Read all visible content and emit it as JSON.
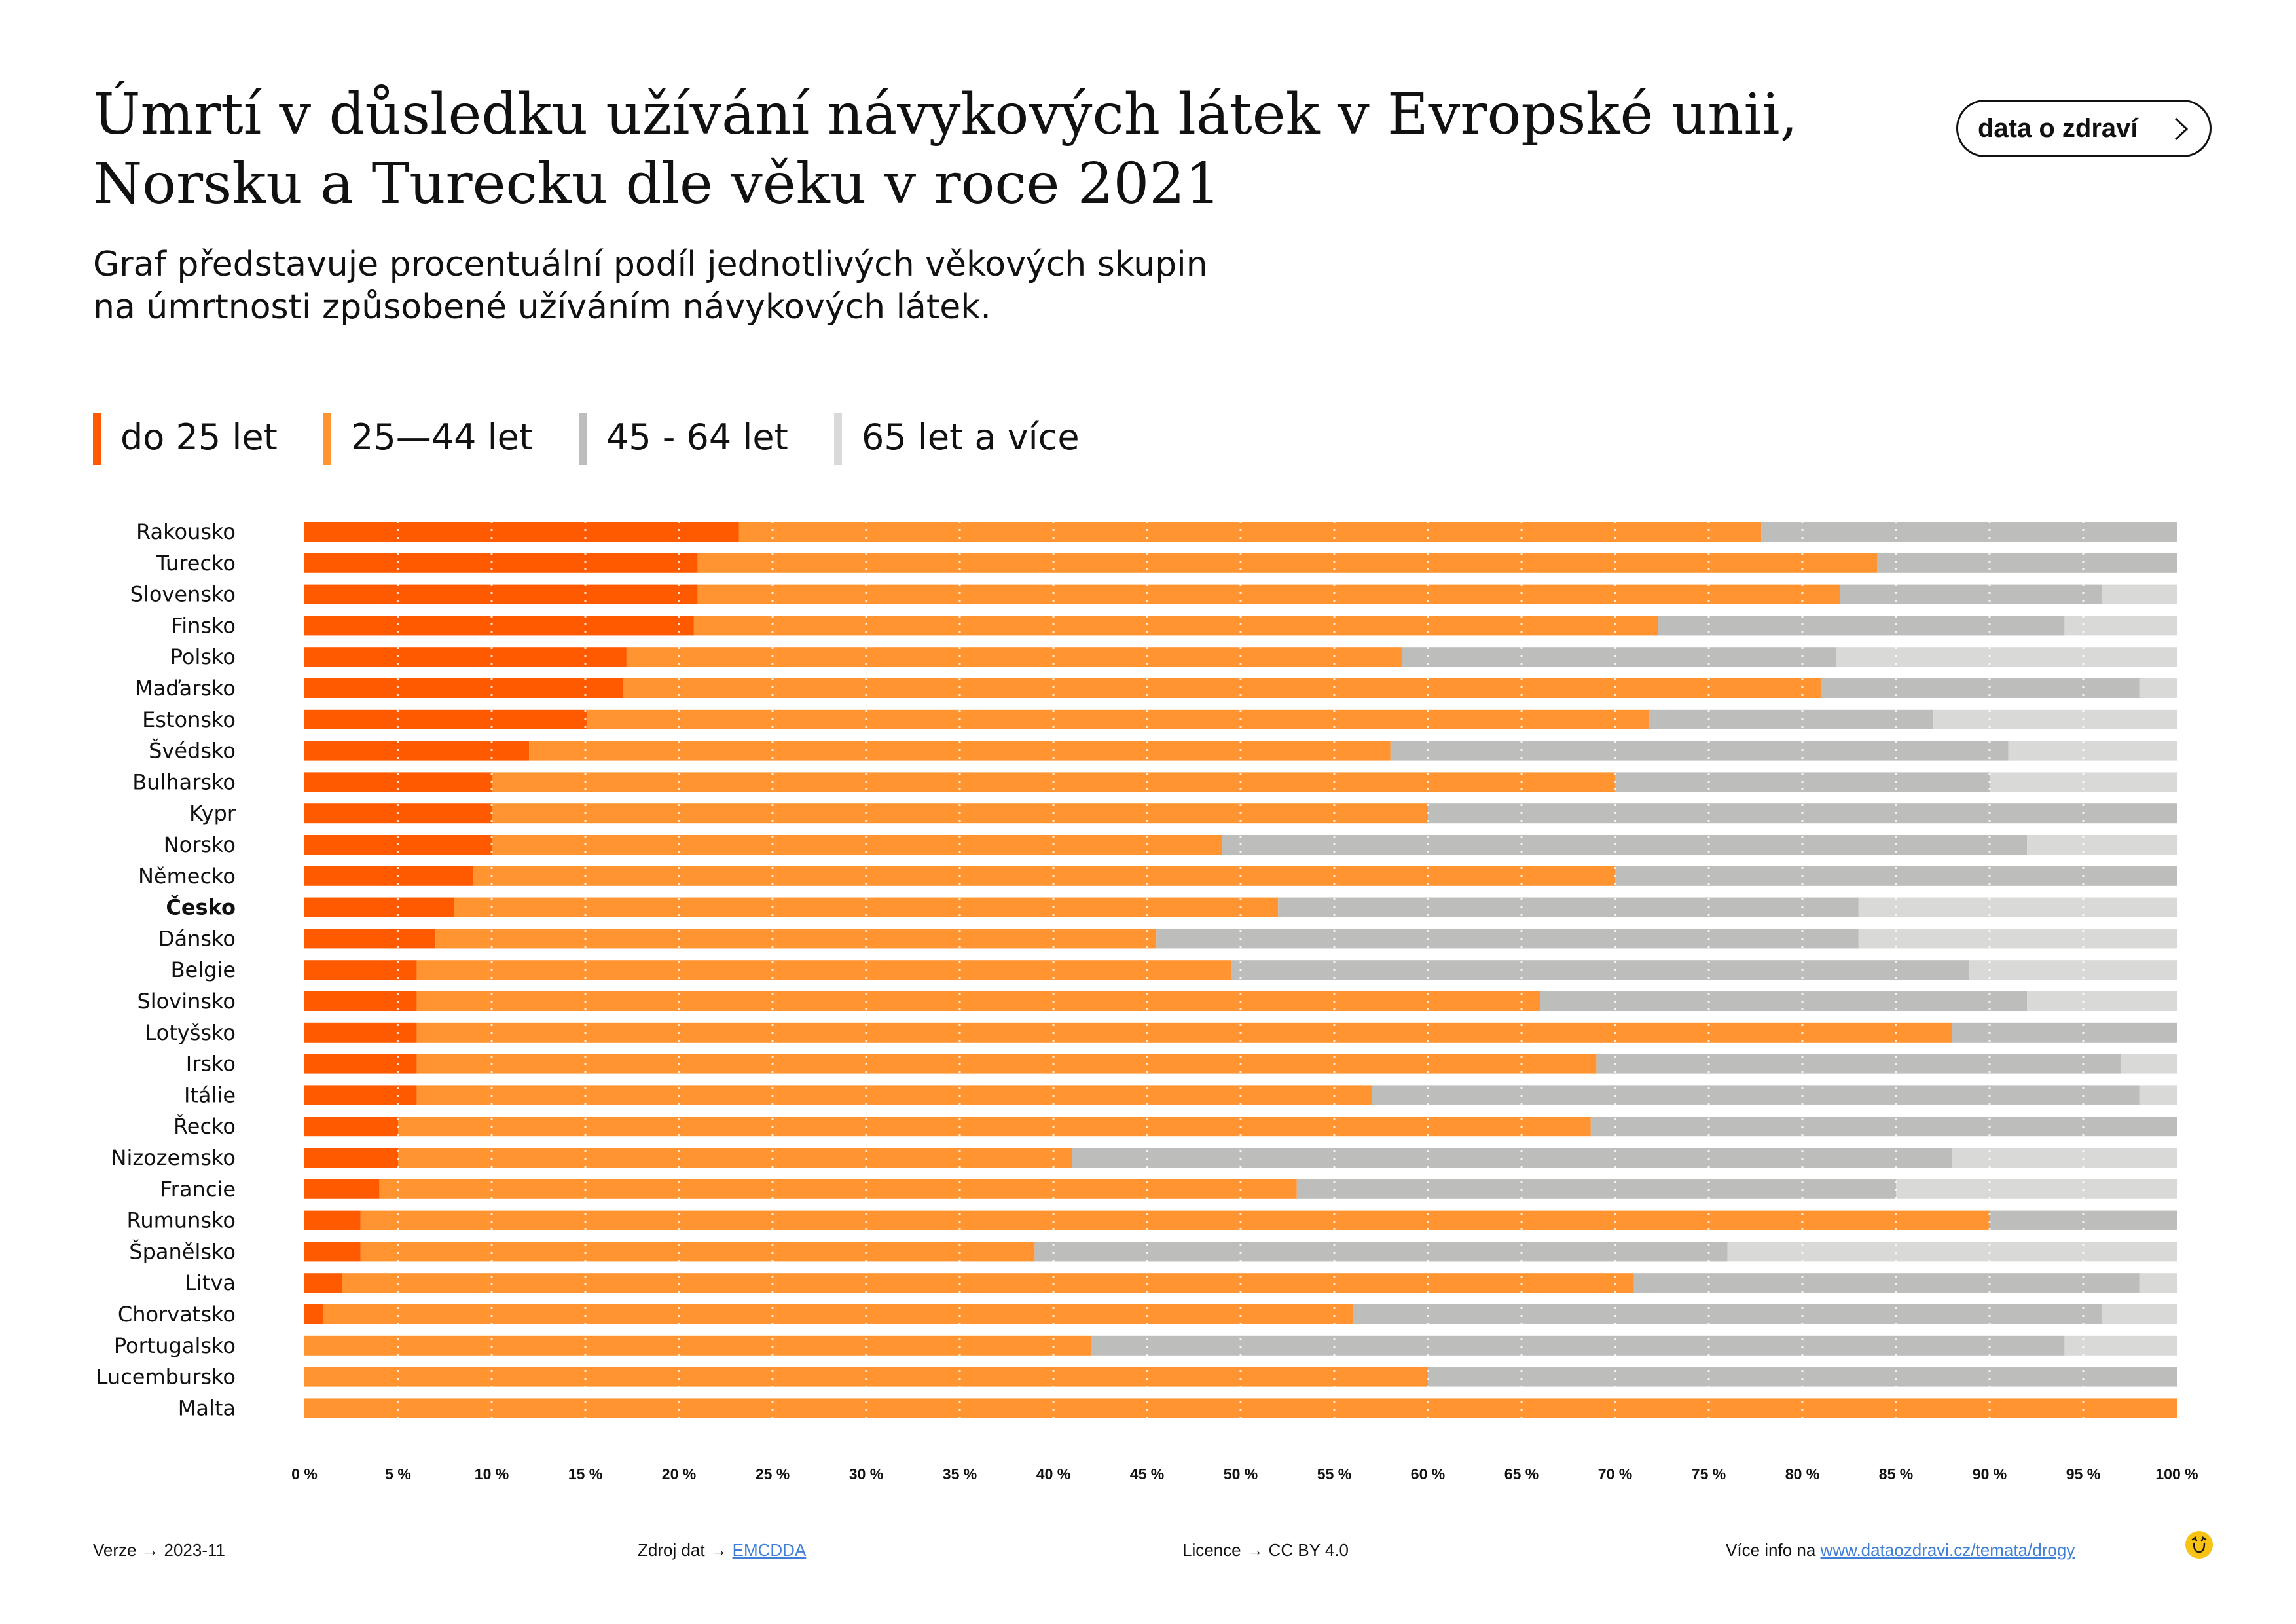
{
  "header": {
    "title_line1": "Úmrtí v důsledku užívání návykových látek v Evropské unii,",
    "title_line2": "Norsku a Turecku dle věku v roce 2021",
    "subtitle_line1": "Graf představuje procentuální podíl jednotlivých věkových skupin",
    "subtitle_line2": "na úmrtnosti způsobené užíváním návykových látek.",
    "badge_label": "data o zdraví",
    "badge_icon": "chevron-right-icon"
  },
  "colors": {
    "do25": "#ff5a00",
    "25_44": "#ff9431",
    "45_64": "#bdbdbb",
    "65plus": "#d9d9d8"
  },
  "chart_data": {
    "type": "bar",
    "orientation": "horizontal",
    "stacked": true,
    "xlim": [
      0,
      100
    ],
    "x_ticks": [
      "0 %",
      "5 %",
      "10 %",
      "15 %",
      "20 %",
      "25 %",
      "30 %",
      "35 %",
      "40 %",
      "45 %",
      "50 %",
      "55 %",
      "60 %",
      "65 %",
      "70 %",
      "75 %",
      "80 %",
      "85 %",
      "90 %",
      "95 %",
      "100 %"
    ],
    "grid": "vertical dotted",
    "legend_position": "top-left",
    "highlighted_category": "Česko",
    "categories": [
      "Rakousko",
      "Turecko",
      "Slovensko",
      "Finsko",
      "Polsko",
      "Maďarsko",
      "Estonsko",
      "Švédsko",
      "Bulharsko",
      "Kypr",
      "Norsko",
      "Německo",
      "Česko",
      "Dánsko",
      "Belgie",
      "Slovinsko",
      "Lotyšsko",
      "Irsko",
      "Itálie",
      "Řecko",
      "Nizozemsko",
      "Francie",
      "Rumunsko",
      "Španělsko",
      "Litva",
      "Chorvatsko",
      "Portugalsko",
      "Lucembursko",
      "Malta"
    ],
    "series": [
      {
        "name": "do 25 let",
        "color": "#ff5a00",
        "values": [
          23.2,
          21,
          21,
          20.8,
          17.2,
          17,
          15.1,
          12,
          10,
          10,
          10,
          9,
          8,
          7,
          6,
          6,
          6,
          6,
          6,
          5,
          5,
          4,
          3,
          3,
          2,
          1,
          0,
          0,
          0
        ]
      },
      {
        "name": "25—44 let",
        "color": "#ff9431",
        "values": [
          54.6,
          63,
          61,
          51.5,
          41.4,
          64,
          56.7,
          46,
          60,
          50,
          39,
          61,
          44,
          38.5,
          43.5,
          60,
          82,
          63,
          51,
          63.7,
          36,
          49,
          87,
          36,
          69,
          55,
          42,
          60,
          100
        ]
      },
      {
        "name": "45 - 64 let",
        "color": "#bdbdbb",
        "values": [
          22.2,
          16,
          14,
          21.7,
          23.2,
          17,
          15.2,
          33,
          20,
          40,
          43,
          30,
          31,
          37.5,
          39.4,
          26,
          12,
          28,
          41,
          31.3,
          47,
          32,
          10,
          37,
          27,
          40,
          52,
          40,
          0
        ]
      },
      {
        "name": "65 let a více",
        "color": "#d9d9d8",
        "values": [
          0,
          0,
          4,
          6,
          18.2,
          2,
          13,
          9,
          10,
          0,
          8,
          0,
          17,
          17,
          11.1,
          8,
          0,
          3,
          2,
          0,
          12,
          15,
          0,
          24,
          2,
          4,
          6,
          0,
          0
        ]
      }
    ]
  },
  "footer": {
    "version_label": "Verze",
    "version_value": "2023-11",
    "source_label": "Zdroj dat",
    "source_value": "EMCDDA",
    "license_label": "Licence",
    "license_value": "CC BY 4.0",
    "more_label": "Více info na",
    "more_value": "www.dataozdravi.cz/temata/drogy",
    "logo_icon": "dataozdravi-logo-icon"
  }
}
